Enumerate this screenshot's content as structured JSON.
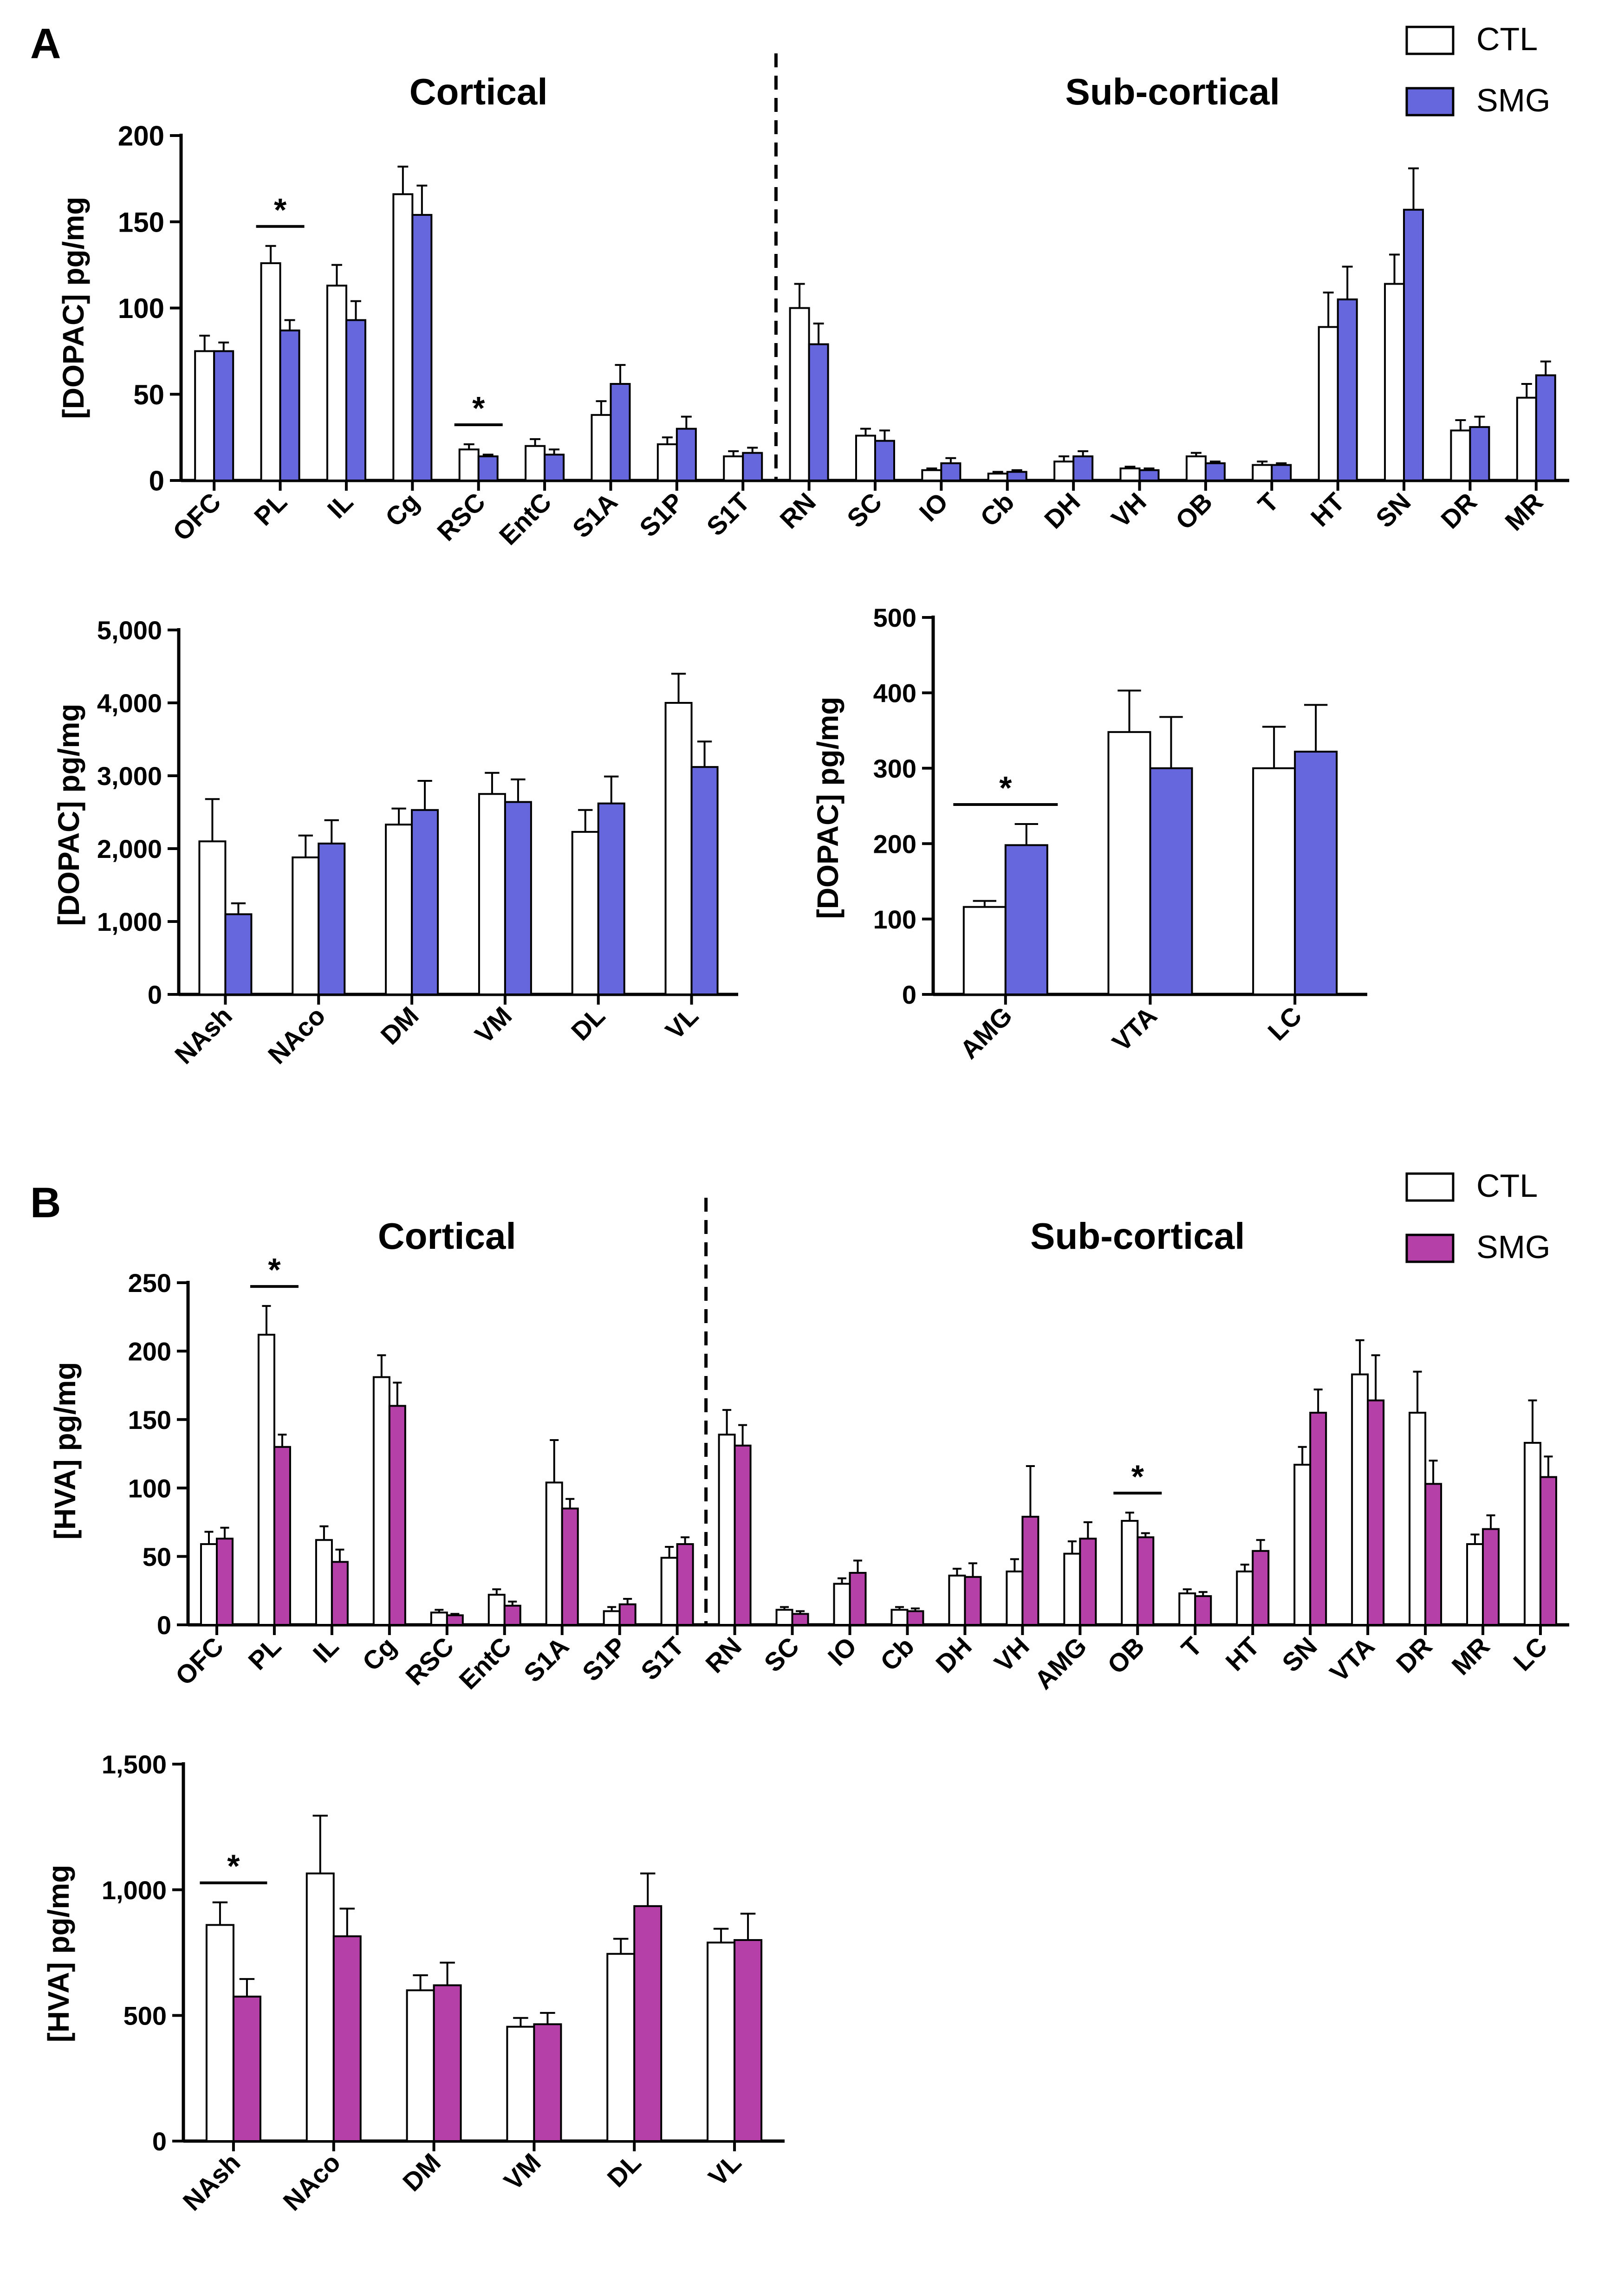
{
  "colors": {
    "ctl_fill": "#ffffff",
    "smg_dopac": "#6666dd",
    "smg_hva": "#b540a8",
    "axis": "#000000"
  },
  "panel_a": {
    "label": "A",
    "legend": {
      "ctl": "CTL",
      "smg": "SMG"
    }
  },
  "panel_b": {
    "label": "B",
    "legend": {
      "ctl": "CTL",
      "smg": "SMG"
    }
  },
  "chart_data": [
    {
      "id": "a1",
      "type": "bar",
      "panel": "A",
      "smg_color": "smg_dopac",
      "ylabel": "[DOPAC] pg/mg",
      "ylim": [
        0,
        200
      ],
      "yticks": [
        0,
        50,
        100,
        150,
        200
      ],
      "group_labels": {
        "left": "Cortical",
        "right": "Sub-cortical"
      },
      "divider_after": 8,
      "categories": [
        "OFC",
        "PL",
        "IL",
        "Cg",
        "RSC",
        "EntC",
        "S1A",
        "S1P",
        "S1T",
        "RN",
        "SC",
        "IO",
        "Cb",
        "DH",
        "VH",
        "OB",
        "T",
        "HT",
        "SN",
        "DR",
        "MR"
      ],
      "series": [
        {
          "name": "CTL",
          "values": [
            75,
            126,
            113,
            166,
            18,
            20,
            38,
            21,
            14,
            100,
            26,
            6,
            4,
            11,
            7,
            14,
            9,
            89,
            114,
            29,
            48
          ],
          "errors": [
            9,
            10,
            12,
            16,
            3,
            4,
            8,
            4,
            3,
            14,
            4,
            1,
            1,
            3,
            1,
            2,
            2,
            20,
            17,
            6,
            8
          ]
        },
        {
          "name": "SMG",
          "values": [
            75,
            87,
            93,
            154,
            14,
            15,
            56,
            30,
            16,
            79,
            23,
            10,
            5,
            14,
            6,
            10,
            9,
            105,
            157,
            31,
            61
          ],
          "errors": [
            5,
            6,
            11,
            17,
            1,
            3,
            11,
            7,
            3,
            12,
            6,
            3,
            1,
            3,
            1,
            1,
            1,
            19,
            24,
            6,
            8
          ]
        }
      ],
      "significance": [
        {
          "category": "PL",
          "label": "*"
        },
        {
          "category": "RSC",
          "label": "*"
        }
      ]
    },
    {
      "id": "a2",
      "type": "bar",
      "panel": "A",
      "smg_color": "smg_dopac",
      "ylabel": "[DOPAC] pg/mg",
      "ylim": [
        0,
        5000
      ],
      "yticks": [
        0,
        1000,
        2000,
        3000,
        4000,
        5000
      ],
      "ytick_labels": [
        "0",
        "1,000",
        "2,000",
        "3,000",
        "4,000",
        "5,000"
      ],
      "categories": [
        "NAsh",
        "NAco",
        "DM",
        "VM",
        "DL",
        "VL"
      ],
      "series": [
        {
          "name": "CTL",
          "values": [
            2100,
            1880,
            2330,
            2750,
            2230,
            4000
          ],
          "errors": [
            580,
            300,
            220,
            290,
            300,
            400
          ]
        },
        {
          "name": "SMG",
          "values": [
            1100,
            2070,
            2530,
            2640,
            2620,
            3120
          ],
          "errors": [
            150,
            320,
            400,
            310,
            370,
            350
          ]
        }
      ],
      "significance": []
    },
    {
      "id": "a3",
      "type": "bar",
      "panel": "A",
      "smg_color": "smg_dopac",
      "ylabel": "[DOPAC] pg/mg",
      "ylim": [
        0,
        500
      ],
      "yticks": [
        0,
        100,
        200,
        300,
        400,
        500
      ],
      "categories": [
        "AMG",
        "VTA",
        "LC"
      ],
      "series": [
        {
          "name": "CTL",
          "values": [
            116,
            348,
            300
          ],
          "errors": [
            8,
            55,
            55
          ]
        },
        {
          "name": "SMG",
          "values": [
            198,
            300,
            322
          ],
          "errors": [
            28,
            68,
            62
          ]
        }
      ],
      "significance": [
        {
          "category": "AMG",
          "label": "*"
        }
      ]
    },
    {
      "id": "b1",
      "type": "bar",
      "panel": "B",
      "smg_color": "smg_hva",
      "ylabel": "[HVA] pg/mg",
      "ylim": [
        0,
        250
      ],
      "yticks": [
        0,
        50,
        100,
        150,
        200,
        250
      ],
      "group_labels": {
        "left": "Cortical",
        "right": "Sub-cortical"
      },
      "divider_after": 8,
      "categories": [
        "OFC",
        "PL",
        "IL",
        "Cg",
        "RSC",
        "EntC",
        "S1A",
        "S1P",
        "S1T",
        "RN",
        "SC",
        "IO",
        "Cb",
        "DH",
        "VH",
        "AMG",
        "OB",
        "T",
        "HT",
        "SN",
        "VTA",
        "DR",
        "MR",
        "LC"
      ],
      "series": [
        {
          "name": "CTL",
          "values": [
            59,
            212,
            62,
            181,
            9,
            22,
            104,
            10,
            49,
            139,
            11,
            30,
            11,
            36,
            39,
            52,
            76,
            23,
            39,
            117,
            183,
            155,
            59,
            133
          ],
          "errors": [
            9,
            21,
            10,
            16,
            2,
            4,
            31,
            3,
            8,
            18,
            2,
            4,
            2,
            5,
            9,
            9,
            6,
            3,
            5,
            13,
            25,
            30,
            7,
            31
          ]
        },
        {
          "name": "SMG",
          "values": [
            63,
            130,
            46,
            160,
            7,
            14,
            85,
            15,
            59,
            131,
            8,
            38,
            10,
            35,
            79,
            63,
            64,
            21,
            54,
            155,
            164,
            103,
            70,
            108
          ],
          "errors": [
            8,
            9,
            9,
            17,
            1,
            3,
            7,
            4,
            5,
            15,
            2,
            9,
            2,
            10,
            37,
            12,
            3,
            3,
            8,
            17,
            33,
            17,
            10,
            15
          ]
        }
      ],
      "significance": [
        {
          "category": "PL",
          "label": "*"
        },
        {
          "category": "OB",
          "label": "*"
        }
      ]
    },
    {
      "id": "b2",
      "type": "bar",
      "panel": "B",
      "smg_color": "smg_hva",
      "ylabel": "[HVA] pg/mg",
      "ylim": [
        0,
        1500
      ],
      "yticks": [
        0,
        500,
        1000,
        1500
      ],
      "ytick_labels": [
        "0",
        "500",
        "1,000",
        "1,500"
      ],
      "categories": [
        "NAsh",
        "NAco",
        "DM",
        "VM",
        "DL",
        "VL"
      ],
      "series": [
        {
          "name": "CTL",
          "values": [
            860,
            1065,
            600,
            455,
            745,
            790
          ],
          "errors": [
            90,
            230,
            60,
            35,
            60,
            55
          ]
        },
        {
          "name": "SMG",
          "values": [
            575,
            815,
            620,
            465,
            935,
            800
          ],
          "errors": [
            70,
            110,
            90,
            45,
            130,
            105
          ]
        }
      ],
      "significance": [
        {
          "category": "NAsh",
          "label": "*"
        }
      ]
    }
  ]
}
